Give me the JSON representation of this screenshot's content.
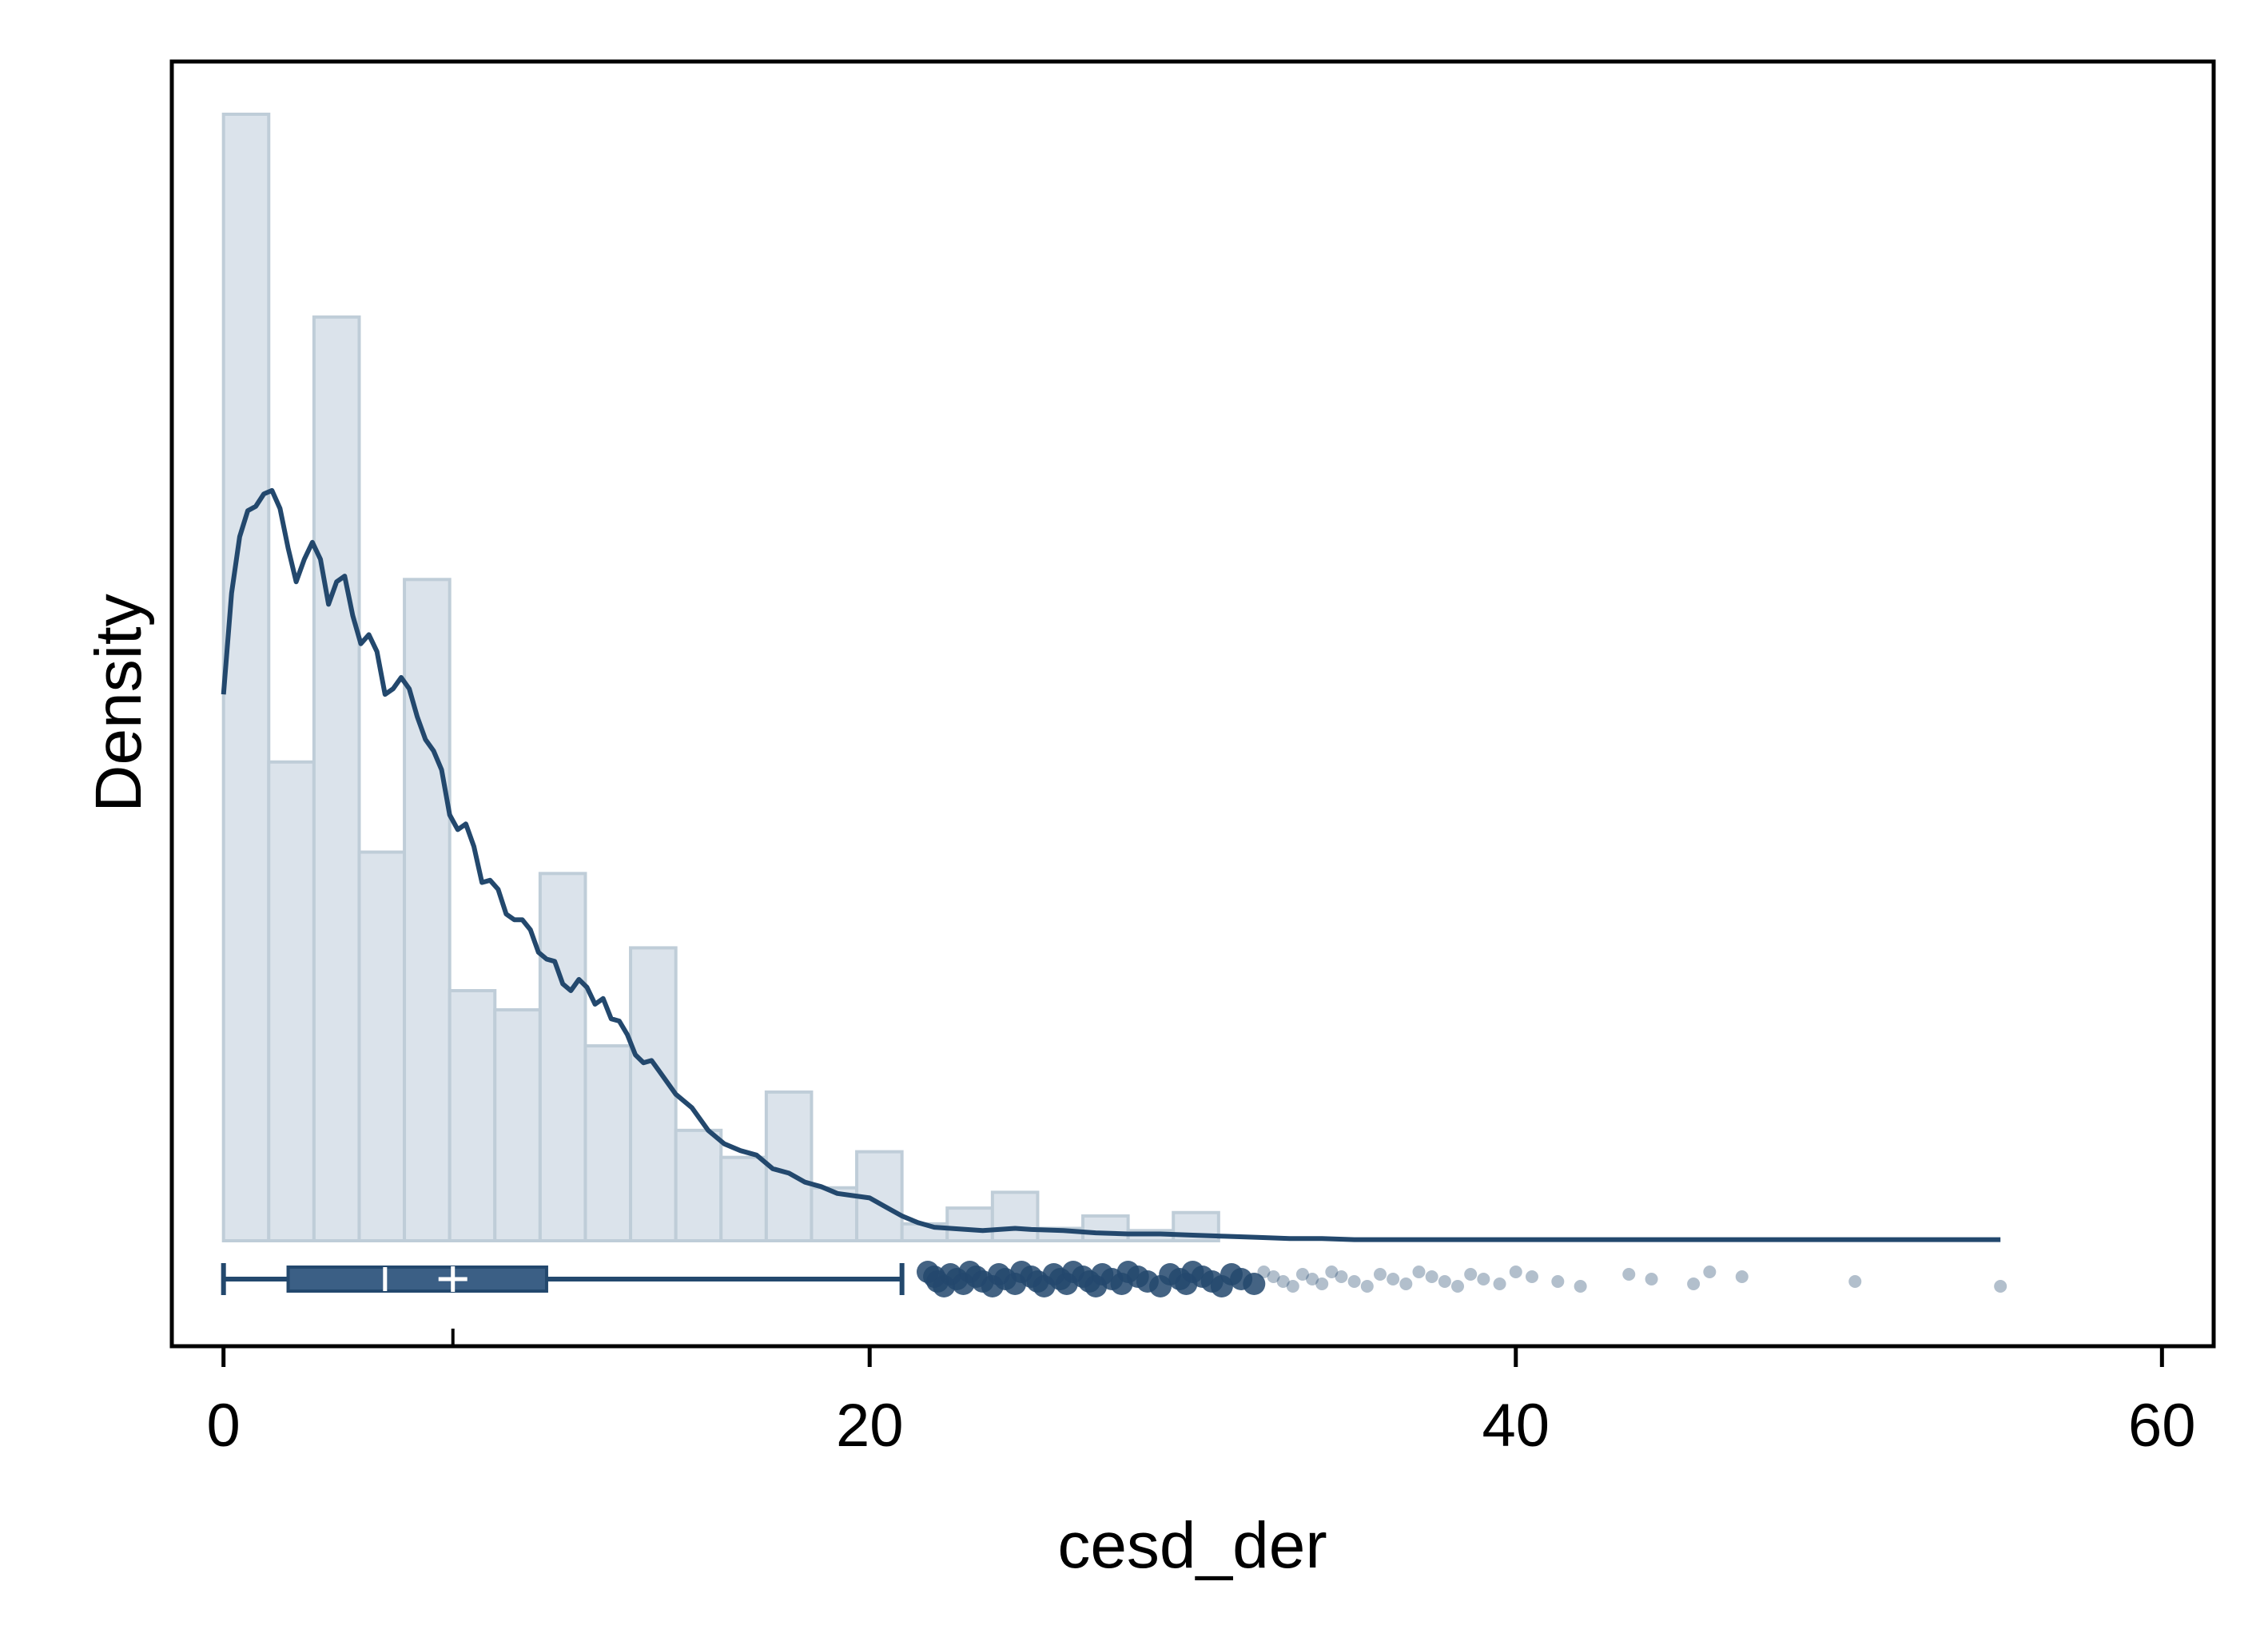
{
  "chart_data": {
    "type": "histogram",
    "xlabel": "cesd_der",
    "ylabel": "Density",
    "xlim": [
      -1.6,
      61.6
    ],
    "x_ticks": [
      0,
      20,
      40,
      60
    ],
    "show_y_ticks": false,
    "grid": false,
    "legend": "none",
    "colors": {
      "bar_fill": "#dbe3eb",
      "bar_stroke": "#bfcdd8",
      "line": "#23486d",
      "box": "#3b5f85",
      "outlier": "#23486d"
    },
    "histogram": {
      "bin_width": 1.4,
      "bins": [
        {
          "x0": 0.0,
          "x1": 1.4,
          "density": 0.1
        },
        {
          "x0": 1.4,
          "x1": 2.8,
          "density": 0.0425
        },
        {
          "x0": 2.8,
          "x1": 4.2,
          "density": 0.082
        },
        {
          "x0": 4.2,
          "x1": 5.6,
          "density": 0.0345
        },
        {
          "x0": 5.6,
          "x1": 7.0,
          "density": 0.0587
        },
        {
          "x0": 7.0,
          "x1": 8.4,
          "density": 0.0222
        },
        {
          "x0": 8.4,
          "x1": 9.8,
          "density": 0.0205
        },
        {
          "x0": 9.8,
          "x1": 11.2,
          "density": 0.0326
        },
        {
          "x0": 11.2,
          "x1": 12.6,
          "density": 0.0173
        },
        {
          "x0": 12.6,
          "x1": 14.0,
          "density": 0.026
        },
        {
          "x0": 14.0,
          "x1": 15.4,
          "density": 0.0098
        },
        {
          "x0": 15.4,
          "x1": 16.8,
          "density": 0.0074
        },
        {
          "x0": 16.8,
          "x1": 18.2,
          "density": 0.0132
        },
        {
          "x0": 18.2,
          "x1": 19.6,
          "density": 0.0047
        },
        {
          "x0": 19.6,
          "x1": 21.0,
          "density": 0.0079
        },
        {
          "x0": 21.0,
          "x1": 22.4,
          "density": 0.0015
        },
        {
          "x0": 22.4,
          "x1": 23.8,
          "density": 0.0029
        },
        {
          "x0": 23.8,
          "x1": 25.2,
          "density": 0.0043
        },
        {
          "x0": 25.2,
          "x1": 26.6,
          "density": 0.0011
        },
        {
          "x0": 26.6,
          "x1": 28.0,
          "density": 0.0022
        },
        {
          "x0": 28.0,
          "x1": 29.4,
          "density": 0.0009
        },
        {
          "x0": 29.4,
          "x1": 30.8,
          "density": 0.0025
        }
      ]
    },
    "density_curve": {
      "x": [
        0,
        0.25,
        0.5,
        0.75,
        1.0,
        1.25,
        1.5,
        1.75,
        2.0,
        2.25,
        2.5,
        2.75,
        3.0,
        3.25,
        3.5,
        3.75,
        4.0,
        4.25,
        4.5,
        4.75,
        5.0,
        5.25,
        5.5,
        5.75,
        6.0,
        6.25,
        6.5,
        6.75,
        7.0,
        7.25,
        7.5,
        7.75,
        8.0,
        8.25,
        8.5,
        8.75,
        9.0,
        9.25,
        9.5,
        9.75,
        10.0,
        10.25,
        10.5,
        10.75,
        11.0,
        11.25,
        11.5,
        11.75,
        12.0,
        12.25,
        12.5,
        12.75,
        13.0,
        13.25,
        13.5,
        13.75,
        14.0,
        14.5,
        15.0,
        15.5,
        16.0,
        16.5,
        17.0,
        17.5,
        18.0,
        18.5,
        19.0,
        19.5,
        20.0,
        20.5,
        21.0,
        21.5,
        22.0,
        22.5,
        23.0,
        23.5,
        24.0,
        24.5,
        25.0,
        26.0,
        27.0,
        28.0,
        29.0,
        30.0,
        31.0,
        32.0,
        33.0,
        34.0,
        35.0,
        36.0,
        38.0,
        40.0,
        42.0,
        44.0,
        46.0,
        48.0,
        50.0,
        52.0,
        55.0
      ],
      "y": [
        0.0485,
        0.0575,
        0.0625,
        0.0648,
        0.0652,
        0.0663,
        0.0666,
        0.065,
        0.0615,
        0.0585,
        0.0605,
        0.062,
        0.0605,
        0.0565,
        0.0585,
        0.059,
        0.0555,
        0.053,
        0.0538,
        0.0523,
        0.0485,
        0.049,
        0.05,
        0.049,
        0.0465,
        0.0445,
        0.0435,
        0.0418,
        0.0378,
        0.0365,
        0.037,
        0.035,
        0.0318,
        0.032,
        0.0312,
        0.029,
        0.0285,
        0.0285,
        0.0276,
        0.0256,
        0.025,
        0.0248,
        0.0228,
        0.0222,
        0.0232,
        0.0225,
        0.021,
        0.0215,
        0.0197,
        0.0195,
        0.0183,
        0.0165,
        0.0158,
        0.016,
        0.015,
        0.014,
        0.013,
        0.0118,
        0.0098,
        0.0086,
        0.008,
        0.0076,
        0.0064,
        0.006,
        0.0052,
        0.0048,
        0.0042,
        0.004,
        0.0038,
        0.003,
        0.0022,
        0.0016,
        0.0012,
        0.0011,
        0.001,
        0.0009,
        0.001,
        0.0011,
        0.001,
        0.0009,
        0.0007,
        0.0006,
        0.0006,
        0.0005,
        0.0004,
        0.0003,
        0.0002,
        0.0002,
        0.0001,
        0.0001,
        0.0001,
        0.0001,
        0.0001,
        0.0001,
        0.0001,
        0.0001,
        0.0001,
        0.0001,
        0.0001
      ],
      "ylim": [
        0,
        0.1
      ]
    },
    "boxplot": {
      "min": 0,
      "q1": 2,
      "median": 5,
      "mean": 7.1,
      "q3": 10,
      "whisker_high": 21,
      "outliers": [
        21.8,
        22.0,
        22.1,
        22.3,
        22.5,
        22.7,
        22.9,
        23.1,
        23.3,
        23.5,
        23.8,
        24.0,
        24.2,
        24.5,
        24.7,
        25.0,
        25.2,
        25.4,
        25.7,
        25.9,
        26.1,
        26.3,
        26.6,
        26.8,
        27.0,
        27.2,
        27.5,
        27.8,
        28.0,
        28.3,
        28.6,
        29.0,
        29.3,
        29.6,
        29.8,
        30.0,
        30.3,
        30.6,
        30.9,
        31.2,
        31.5,
        31.9,
        32.2,
        32.5,
        32.8,
        33.1,
        33.4,
        33.7,
        34.0,
        34.3,
        34.6,
        35.0,
        35.4,
        35.8,
        36.2,
        36.6,
        37.0,
        37.4,
        37.8,
        38.2,
        38.6,
        39.0,
        39.5,
        40.0,
        40.5,
        41.3,
        42.0,
        43.5,
        44.2,
        45.5,
        46.0,
        47.0,
        50.5,
        55.0
      ]
    }
  }
}
